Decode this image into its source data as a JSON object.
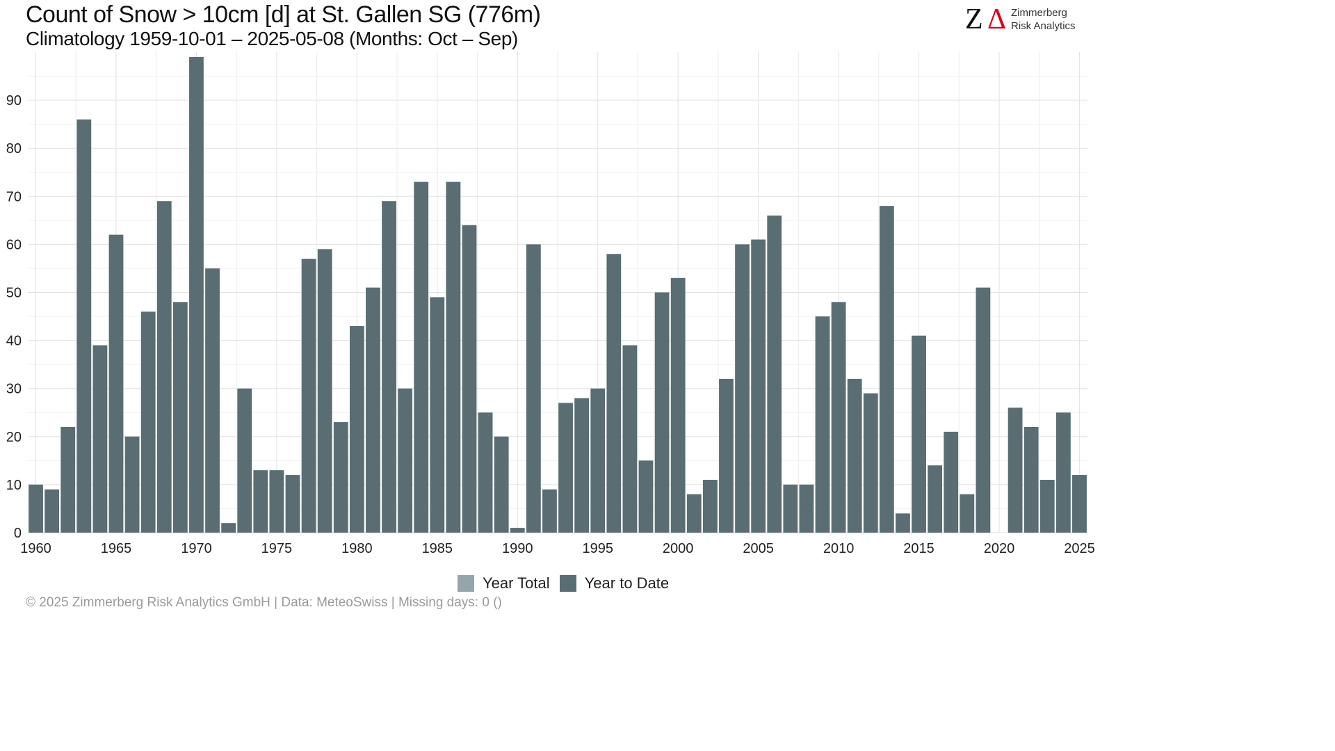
{
  "header": {
    "title": "Count of Snow > 10cm [d] at St. Gallen  SG (776m)",
    "subtitle": "Climatology 1959-10-01 – 2025-05-08 (Months: Oct – Sep)"
  },
  "logo": {
    "mark": "Z",
    "delta": "Δ",
    "name_line1": "Zimmerberg",
    "name_line2": "Risk Analytics"
  },
  "footer": {
    "text": "©  2025 Zimmerberg Risk Analytics GmbH | Data: MeteoSwiss | Missing days: 0 ()"
  },
  "legend": {
    "position": "bottom",
    "items": [
      {
        "label": "Year Total",
        "color": "#95a5ab"
      },
      {
        "label": "Year to Date",
        "color": "#596d73"
      }
    ]
  },
  "chart_data": {
    "type": "bar",
    "x_axis": {
      "range": [
        1959.5,
        2025.5
      ],
      "ticks": [
        1960,
        1965,
        1970,
        1975,
        1980,
        1985,
        1990,
        1995,
        2000,
        2005,
        2010,
        2015,
        2020,
        2025
      ]
    },
    "y_axis": {
      "range": [
        0,
        100
      ],
      "ticks": [
        0,
        10,
        20,
        30,
        40,
        50,
        60,
        70,
        80,
        90
      ]
    },
    "grid": true,
    "series": [
      {
        "name": "Year Total",
        "color": "#95a5ab",
        "x": [
          2025
        ],
        "values": [
          12
        ]
      },
      {
        "name": "Year to Date",
        "color": "#596d73",
        "x": [
          1960,
          1961,
          1962,
          1963,
          1964,
          1965,
          1966,
          1967,
          1968,
          1969,
          1970,
          1971,
          1972,
          1973,
          1974,
          1975,
          1976,
          1977,
          1978,
          1979,
          1980,
          1981,
          1982,
          1983,
          1984,
          1985,
          1986,
          1987,
          1988,
          1989,
          1990,
          1991,
          1992,
          1993,
          1994,
          1995,
          1996,
          1997,
          1998,
          1999,
          2000,
          2001,
          2002,
          2003,
          2004,
          2005,
          2006,
          2007,
          2008,
          2009,
          2010,
          2011,
          2012,
          2013,
          2014,
          2015,
          2016,
          2017,
          2018,
          2019,
          2020,
          2021,
          2022,
          2023,
          2024,
          2025
        ],
        "values": [
          10,
          9,
          22,
          86,
          39,
          62,
          20,
          46,
          69,
          48,
          99,
          55,
          2,
          30,
          13,
          13,
          12,
          57,
          59,
          23,
          43,
          51,
          69,
          30,
          73,
          49,
          73,
          64,
          25,
          20,
          1,
          60,
          9,
          27,
          28,
          30,
          58,
          39,
          15,
          50,
          53,
          8,
          11,
          32,
          60,
          61,
          66,
          10,
          10,
          45,
          48,
          32,
          29,
          68,
          4,
          41,
          14,
          21,
          8,
          51,
          0,
          26,
          22,
          11,
          25,
          12
        ]
      }
    ]
  }
}
